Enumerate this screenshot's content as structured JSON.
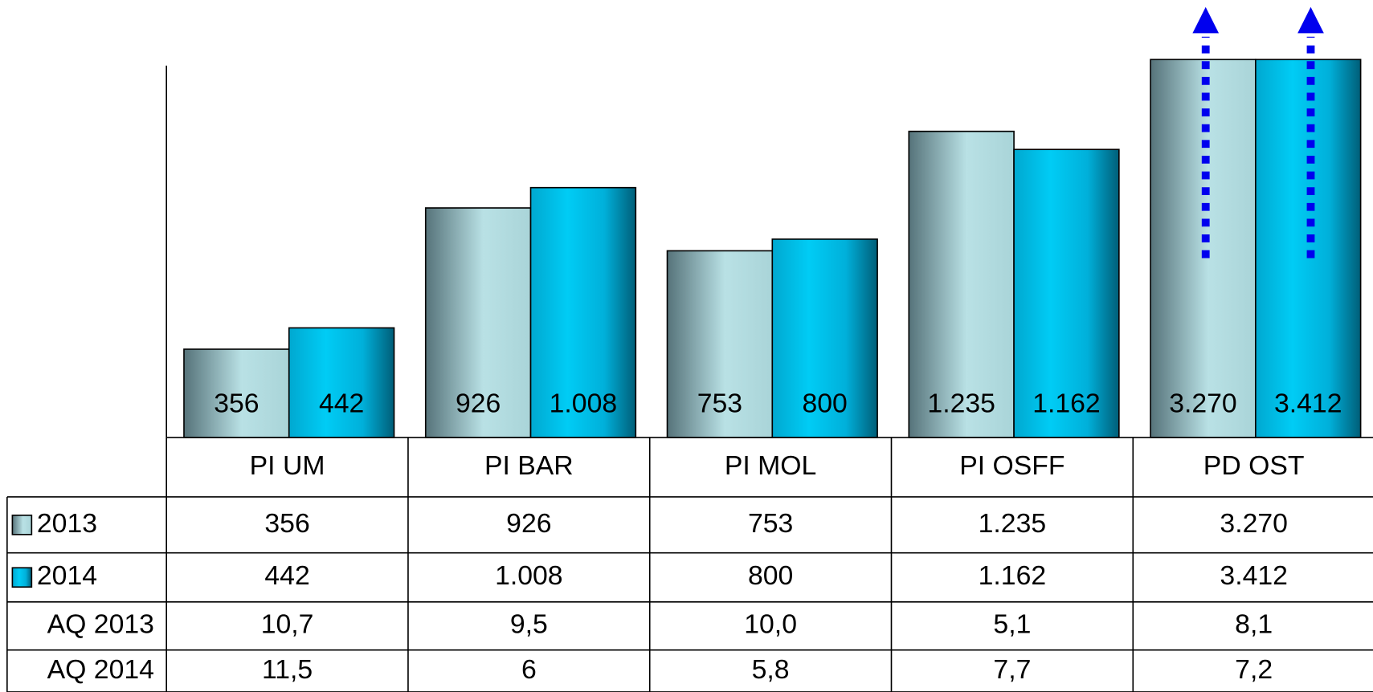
{
  "chart_data": {
    "type": "bar",
    "categories": [
      "PI UM",
      "PI BAR",
      "PI MOL",
      "PI OSFF",
      "PD OST"
    ],
    "series": [
      {
        "name": "2013",
        "color": "#9cc8cc",
        "values": [
          356,
          926,
          753,
          1235,
          3270
        ],
        "value_labels": [
          "356",
          "926",
          "753",
          "1.235",
          "3.270"
        ]
      },
      {
        "name": "2014",
        "color": "#00b8e0",
        "values": [
          442,
          1008,
          800,
          1162,
          3412
        ],
        "value_labels": [
          "442",
          "1.008",
          "800",
          "1.162",
          "3.412"
        ]
      }
    ],
    "ylim": [
      0,
      1525
    ],
    "table_rows": [
      {
        "name": "AQ 2013",
        "cells": [
          "10,7",
          "9,5",
          "10,0",
          "5,1",
          "8,1"
        ]
      },
      {
        "name": "AQ 2014",
        "cells": [
          "11,5",
          "6",
          "5,8",
          "7,7",
          "7,2"
        ]
      }
    ]
  }
}
